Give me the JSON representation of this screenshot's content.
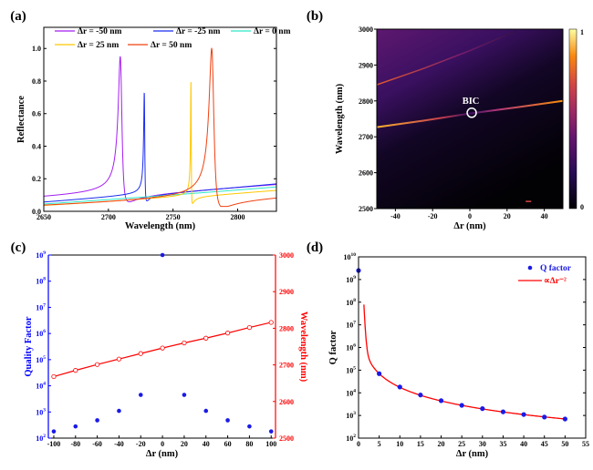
{
  "chart_data": [
    {
      "panel_label": "(a)",
      "type": "line",
      "xlabel": "Wavelength (nm)",
      "ylabel": "Reflectance",
      "xlim": [
        2650,
        2830
      ],
      "ylim": [
        0,
        1.13
      ],
      "xticks": [
        2650,
        2700,
        2750,
        2800
      ],
      "yticks": [
        0.0,
        0.2,
        0.4,
        0.6,
        0.8,
        1.0
      ],
      "xtick_labels": [
        "2650",
        "2700",
        "2750",
        "2800"
      ],
      "ytick_labels": [
        "0.0",
        "0.2",
        "0.4",
        "0.6",
        "0.8",
        "1.0"
      ],
      "legend_placement": "top",
      "series": [
        {
          "name": "Δr = -50 nm",
          "color": "#a41ff0",
          "baseline": [
            0.08,
            0.16
          ],
          "resonance_nm": 2710,
          "peak": 0.95,
          "linewidth_nm": 1.7
        },
        {
          "name": "Δr = -25 nm",
          "color": "#1a2cf0",
          "baseline": [
            0.055,
            0.16
          ],
          "resonance_nm": 2728,
          "peak": 0.73,
          "linewidth_nm": 0.5
        },
        {
          "name": "Δr = 0 nm",
          "color": "#2ee8c8",
          "baseline": [
            0.045,
            0.14
          ],
          "resonance_nm": null,
          "peak": null,
          "linewidth_nm": null
        },
        {
          "name": "Δr = 25 nm",
          "color": "#ffc800",
          "baseline": [
            0.035,
            0.12
          ],
          "resonance_nm": 2764,
          "peak": 0.81,
          "linewidth_nm": 0.3
        },
        {
          "name": "Δr = 50 nm",
          "color": "#f04010",
          "baseline": [
            0.03,
            0.09
          ],
          "resonance_nm": 2781,
          "peak": 1.0,
          "linewidth_nm": 2.2
        }
      ]
    },
    {
      "panel_label": "(b)",
      "type": "heatmap",
      "xlabel": "Δr (nm)",
      "ylabel": "Wavelength (nm)",
      "xlim": [
        -50,
        50
      ],
      "ylim": [
        2500,
        3000
      ],
      "xticks": [
        -40,
        -20,
        0,
        20,
        40
      ],
      "yticks": [
        2500,
        2600,
        2700,
        2800,
        2900,
        3000
      ],
      "xtick_labels": [
        "-40",
        "-20",
        "0",
        "20",
        "40"
      ],
      "ytick_labels": [
        "2500",
        "2600",
        "2700",
        "2800",
        "2900",
        "3000"
      ],
      "colorbar": {
        "min_label": "0",
        "max_label": "1",
        "colormap": "inferno"
      },
      "bands": [
        {
          "x": [
            -50,
            -25,
            0,
            25,
            50
          ],
          "y": [
            2727,
            2745,
            2765,
            2782,
            2800
          ]
        },
        {
          "x": [
            -50,
            -25,
            0,
            25
          ],
          "y": [
            2845,
            2890,
            2940,
            2995
          ]
        }
      ],
      "annotation": {
        "text": "BIC",
        "x": 1,
        "y": 2767
      }
    },
    {
      "panel_label": "(c)",
      "type": "scatter",
      "xlabel": "Δr (nm)",
      "ylabel_left": "Quality Factor",
      "ylabel_right": "Wavelength (nm)",
      "xlim": [
        -105,
        104
      ],
      "ylim_left_log10": [
        2,
        9
      ],
      "ylim_right": [
        2500,
        3000
      ],
      "xticks": [
        -100,
        -80,
        -60,
        -40,
        -20,
        0,
        20,
        40,
        60,
        80,
        100
      ],
      "xtick_labels": [
        "-100",
        "-80",
        "-60",
        "-40",
        "-20",
        "0",
        "20",
        "40",
        "60",
        "80",
        "100"
      ],
      "ytick_left_exponents": [
        "2",
        "3",
        "4",
        "5",
        "6",
        "7",
        "8",
        "9"
      ],
      "yticks_right": [
        2500,
        2600,
        2700,
        2800,
        2900,
        3000
      ],
      "ytick_right_labels": [
        "2500",
        "2600",
        "2700",
        "2800",
        "2900",
        "3000"
      ],
      "left_color": "#0000ff",
      "right_color": "#ff0000",
      "x": [
        -100,
        -80,
        -60,
        -40,
        -20,
        0,
        20,
        40,
        60,
        80,
        100
      ],
      "series": [
        {
          "axis": "left",
          "values": [
            180,
            280,
            480,
            1100,
            4500,
            1000000000,
            4500,
            1100,
            480,
            280,
            180
          ],
          "color": "#1a1ae6"
        },
        {
          "axis": "right",
          "values": [
            2668,
            2685,
            2701,
            2716,
            2731,
            2746,
            2760,
            2773,
            2787,
            2802,
            2816
          ],
          "color": "#ff0000"
        }
      ]
    },
    {
      "panel_label": "(d)",
      "type": "scatter",
      "xlabel": "Δr (nm)",
      "ylabel": "Q factor",
      "xlim": [
        0,
        55
      ],
      "ylim_log10": [
        2,
        10
      ],
      "xticks": [
        0,
        5,
        10,
        15,
        20,
        25,
        30,
        35,
        40,
        45,
        50,
        55
      ],
      "xtick_labels": [
        "0",
        "5",
        "10",
        "15",
        "20",
        "25",
        "30",
        "35",
        "40",
        "45",
        "50",
        "55"
      ],
      "ytick_exponents": [
        "2",
        "3",
        "4",
        "5",
        "6",
        "7",
        "8",
        "9",
        "10"
      ],
      "legend_placement": "top-right",
      "series": [
        {
          "name": "Q factor",
          "kind": "points",
          "color": "#1a1ae6",
          "x": [
            0,
            5,
            10,
            15,
            20,
            25,
            30,
            35,
            40,
            45,
            50
          ],
          "values": [
            2500000000,
            70000,
            18000,
            8000,
            4500,
            2800,
            2000,
            1450,
            1100,
            850,
            700
          ]
        },
        {
          "name": "∝Δr⁻²",
          "kind": "fit",
          "color": "#ff0000"
        }
      ]
    }
  ]
}
